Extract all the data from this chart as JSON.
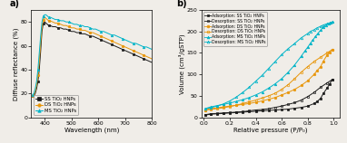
{
  "bg_color": "#f0ede8",
  "panel_a": {
    "title": "a)",
    "xlabel": "Wavelength (nm)",
    "ylabel": "Diffuse reflectance (%)",
    "xlim": [
      350,
      800
    ],
    "ylim": [
      0,
      90
    ],
    "yticks": [
      0,
      20,
      40,
      60,
      80
    ],
    "xticks": [
      400,
      500,
      600,
      700,
      800
    ],
    "series": {
      "SS": {
        "color": "#1a1a1a",
        "marker": "s",
        "label": "SS TiO₂ HNPs",
        "wavelengths": [
          355,
          360,
          365,
          370,
          375,
          380,
          385,
          390,
          395,
          400,
          405,
          410,
          415,
          420,
          430,
          440,
          450,
          460,
          470,
          480,
          490,
          500,
          510,
          520,
          530,
          540,
          550,
          560,
          570,
          580,
          590,
          600,
          610,
          620,
          630,
          640,
          650,
          660,
          670,
          680,
          690,
          700,
          710,
          720,
          730,
          740,
          750,
          760,
          770,
          780,
          790,
          800
        ],
        "values": [
          18,
          18,
          20,
          24,
          30,
          40,
          55,
          72,
          79,
          80,
          79,
          78,
          77,
          77,
          76,
          76,
          75,
          75,
          74,
          74,
          73,
          72,
          72,
          71,
          71,
          70,
          70,
          69,
          68,
          68,
          67,
          66,
          65,
          64,
          63,
          62,
          61,
          60,
          59,
          58,
          57,
          56,
          55,
          54,
          53,
          52,
          51,
          50,
          49,
          48,
          47,
          46
        ]
      },
      "DS": {
        "color": "#e8960a",
        "marker": "o",
        "label": "DS TiO₂ HNPs",
        "wavelengths": [
          355,
          360,
          365,
          370,
          375,
          380,
          385,
          390,
          395,
          400,
          405,
          410,
          415,
          420,
          430,
          440,
          450,
          460,
          470,
          480,
          490,
          500,
          510,
          520,
          530,
          540,
          550,
          560,
          570,
          580,
          590,
          600,
          610,
          620,
          630,
          640,
          650,
          660,
          670,
          680,
          690,
          700,
          710,
          720,
          730,
          740,
          750,
          760,
          770,
          780,
          790,
          800
        ],
        "values": [
          18,
          19,
          22,
          27,
          35,
          47,
          62,
          76,
          82,
          84,
          83,
          82,
          81,
          81,
          80,
          79,
          79,
          78,
          77,
          77,
          76,
          75,
          75,
          74,
          74,
          73,
          73,
          72,
          71,
          71,
          70,
          69,
          68,
          67,
          66,
          65,
          64,
          63,
          62,
          61,
          60,
          59,
          58,
          57,
          56,
          55,
          54,
          53,
          52,
          51,
          50,
          49
        ]
      },
      "MS": {
        "color": "#00b4c8",
        "marker": "^",
        "label": "MS TiO₂ HNPs",
        "wavelengths": [
          355,
          360,
          365,
          370,
          375,
          380,
          385,
          390,
          395,
          400,
          405,
          410,
          415,
          420,
          430,
          440,
          450,
          460,
          470,
          480,
          490,
          500,
          510,
          520,
          530,
          540,
          550,
          560,
          570,
          580,
          590,
          600,
          610,
          620,
          630,
          640,
          650,
          660,
          670,
          680,
          690,
          700,
          710,
          720,
          730,
          740,
          750,
          760,
          770,
          780,
          790,
          800
        ],
        "values": [
          19,
          20,
          24,
          30,
          40,
          54,
          68,
          80,
          85,
          86,
          86,
          85,
          84,
          84,
          83,
          82,
          82,
          81,
          81,
          80,
          80,
          79,
          78,
          78,
          77,
          77,
          76,
          76,
          75,
          74,
          74,
          73,
          72,
          72,
          71,
          70,
          69,
          69,
          68,
          67,
          66,
          65,
          64,
          63,
          62,
          62,
          61,
          60,
          59,
          59,
          58,
          57
        ]
      }
    }
  },
  "panel_b": {
    "title": "b)",
    "xlabel": "Relative pressure (P/P₀)",
    "ylabel": "Volume (cm³/gSTP)",
    "xlim": [
      -0.02,
      1.05
    ],
    "ylim": [
      0,
      250
    ],
    "yticks": [
      0,
      50,
      100,
      150,
      200,
      250
    ],
    "xticks": [
      0.0,
      0.2,
      0.4,
      0.6,
      0.8,
      1.0
    ],
    "series": {
      "SS_ads": {
        "color": "#1a1a1a",
        "marker": "s",
        "fillstyle": "full",
        "label": "Adsorption: SS TiO₂ HNPs",
        "x": [
          0.01,
          0.05,
          0.1,
          0.15,
          0.2,
          0.25,
          0.3,
          0.35,
          0.4,
          0.45,
          0.5,
          0.55,
          0.6,
          0.65,
          0.7,
          0.75,
          0.8,
          0.85,
          0.87,
          0.9,
          0.92,
          0.95,
          0.97,
          0.99
        ],
        "y": [
          5,
          7,
          8,
          9,
          10,
          11,
          12,
          13,
          14,
          15,
          16,
          17,
          18,
          19,
          21,
          23,
          26,
          32,
          36,
          44,
          55,
          68,
          78,
          88
        ]
      },
      "SS_des": {
        "color": "#1a1a1a",
        "marker": "s",
        "fillstyle": "none",
        "label": "Desorption: SS TiO₂ HNPs",
        "x": [
          0.99,
          0.95,
          0.9,
          0.85,
          0.8,
          0.75,
          0.7,
          0.65,
          0.6,
          0.55,
          0.5,
          0.45,
          0.4,
          0.35,
          0.3,
          0.25,
          0.2,
          0.15,
          0.1,
          0.05,
          0.01
        ],
        "y": [
          88,
          80,
          70,
          58,
          48,
          40,
          34,
          30,
          26,
          23,
          20,
          18,
          17,
          15,
          13,
          12,
          11,
          10,
          9,
          8,
          6
        ]
      },
      "DS_ads": {
        "color": "#e8960a",
        "marker": "o",
        "fillstyle": "full",
        "label": "Adsorption: DS TiO₂ HNPs",
        "x": [
          0.01,
          0.05,
          0.1,
          0.15,
          0.2,
          0.25,
          0.3,
          0.35,
          0.4,
          0.45,
          0.5,
          0.55,
          0.6,
          0.65,
          0.7,
          0.75,
          0.8,
          0.85,
          0.87,
          0.9,
          0.92,
          0.95,
          0.97,
          0.99
        ],
        "y": [
          17,
          20,
          22,
          24,
          26,
          28,
          30,
          32,
          35,
          38,
          42,
          46,
          52,
          58,
          65,
          74,
          85,
          100,
          108,
          118,
          130,
          145,
          152,
          158
        ]
      },
      "DS_des": {
        "color": "#e8960a",
        "marker": "o",
        "fillstyle": "none",
        "label": "Desorption: DS TiO₂ HNPs",
        "x": [
          0.99,
          0.95,
          0.9,
          0.85,
          0.8,
          0.75,
          0.7,
          0.65,
          0.6,
          0.55,
          0.5,
          0.45,
          0.4,
          0.35,
          0.3,
          0.25,
          0.2,
          0.15,
          0.1,
          0.05,
          0.01
        ],
        "y": [
          158,
          150,
          140,
          130,
          118,
          105,
          90,
          76,
          65,
          56,
          50,
          45,
          40,
          36,
          32,
          28,
          25,
          22,
          20,
          18,
          17
        ]
      },
      "MS_ads": {
        "color": "#00b4c8",
        "marker": "^",
        "fillstyle": "full",
        "label": "Adsorption: MS TiO₂ HNPs",
        "x": [
          0.01,
          0.05,
          0.1,
          0.15,
          0.2,
          0.25,
          0.3,
          0.35,
          0.4,
          0.45,
          0.5,
          0.55,
          0.6,
          0.65,
          0.7,
          0.75,
          0.78,
          0.8,
          0.82,
          0.84,
          0.86,
          0.88,
          0.9,
          0.92,
          0.94,
          0.96,
          0.98,
          0.99
        ],
        "y": [
          20,
          24,
          27,
          30,
          33,
          37,
          41,
          46,
          52,
          59,
          68,
          78,
          90,
          105,
          122,
          142,
          155,
          163,
          172,
          180,
          188,
          196,
          203,
          210,
          215,
          218,
          220,
          222
        ]
      },
      "MS_des": {
        "color": "#00b4c8",
        "marker": "^",
        "fillstyle": "none",
        "label": "Desorption: MS TiO₂ HNPs",
        "x": [
          0.99,
          0.97,
          0.95,
          0.92,
          0.9,
          0.87,
          0.85,
          0.82,
          0.8,
          0.75,
          0.7,
          0.65,
          0.6,
          0.55,
          0.5,
          0.45,
          0.4,
          0.35,
          0.3,
          0.25,
          0.2,
          0.15,
          0.1,
          0.05,
          0.01
        ],
        "y": [
          222,
          220,
          218,
          215,
          212,
          208,
          204,
          200,
          195,
          185,
          172,
          160,
          146,
          130,
          114,
          98,
          84,
          70,
          58,
          47,
          38,
          31,
          26,
          22,
          20
        ]
      }
    }
  }
}
